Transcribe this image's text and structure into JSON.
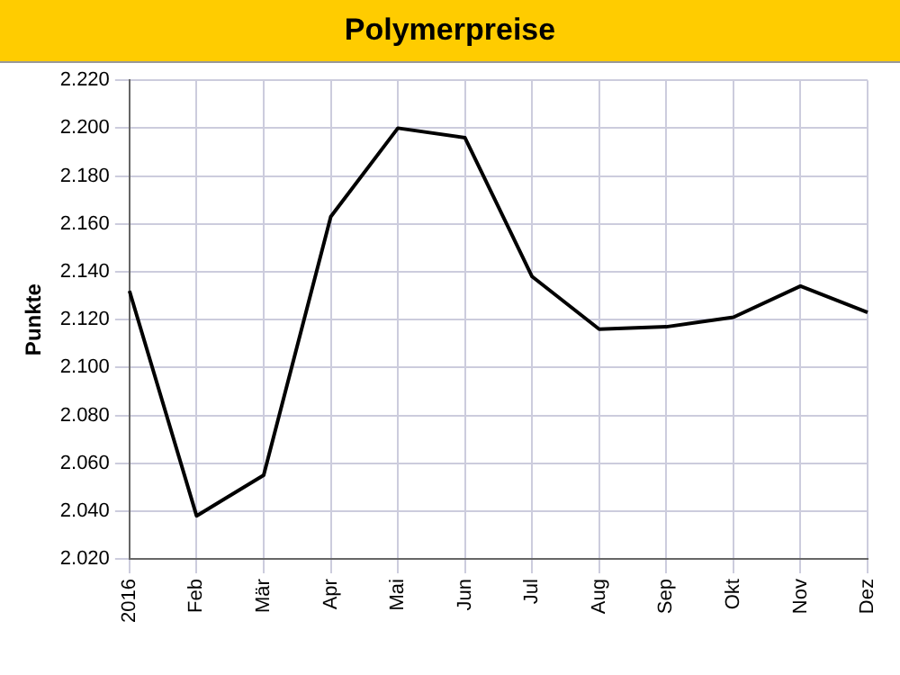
{
  "chart_data": {
    "type": "line",
    "title": "Polymerpreise",
    "ylabel": "Punkte",
    "categories": [
      "2016",
      "Feb",
      "Mär",
      "Apr",
      "Mai",
      "Jun",
      "Jul",
      "Aug",
      "Sep",
      "Okt",
      "Nov",
      "Dez"
    ],
    "series": [
      {
        "color": "#000000",
        "values": [
          2132,
          2038,
          2055,
          2163,
          2200,
          2196,
          2138,
          2116,
          2117,
          2121,
          2134,
          2123
        ]
      }
    ],
    "ylim": [
      2020,
      2220
    ],
    "yticks": [
      {
        "value": 2020,
        "label": "2.020"
      },
      {
        "value": 2040,
        "label": "2.040"
      },
      {
        "value": 2060,
        "label": "2.060"
      },
      {
        "value": 2080,
        "label": "2.080"
      },
      {
        "value": 2100,
        "label": "2.100"
      },
      {
        "value": 2120,
        "label": "2.120"
      },
      {
        "value": 2140,
        "label": "2.140"
      },
      {
        "value": 2160,
        "label": "2.160"
      },
      {
        "value": 2180,
        "label": "2.180"
      },
      {
        "value": 2200,
        "label": "2.200"
      },
      {
        "value": 2220,
        "label": "2.220"
      }
    ],
    "grid": true,
    "marker": "none",
    "line_style": "solid"
  }
}
